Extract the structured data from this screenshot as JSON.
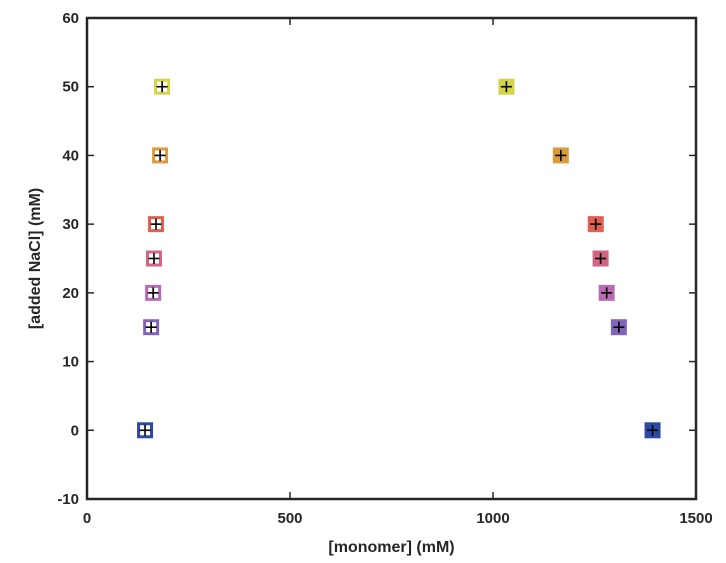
{
  "chart_data": {
    "type": "scatter",
    "title": "",
    "xlabel": "[monomer] (mM)",
    "ylabel": "[added NaCl] (mM)",
    "xlim": [
      0,
      1500
    ],
    "ylim": [
      -10,
      60
    ],
    "xticks": [
      0,
      500,
      1000,
      1500
    ],
    "yticks": [
      -10,
      0,
      10,
      20,
      30,
      40,
      50,
      60
    ],
    "grid": false,
    "legend": "none",
    "points": [
      {
        "x": 185,
        "y": 50,
        "color": "#d4d44a",
        "filled": false
      },
      {
        "x": 180,
        "y": 40,
        "color": "#dd9a3c",
        "filled": false
      },
      {
        "x": 170,
        "y": 30,
        "color": "#e06152",
        "filled": false
      },
      {
        "x": 165,
        "y": 25,
        "color": "#d26682",
        "filled": false
      },
      {
        "x": 163,
        "y": 20,
        "color": "#b66bb3",
        "filled": false
      },
      {
        "x": 158,
        "y": 15,
        "color": "#8365b5",
        "filled": false
      },
      {
        "x": 143,
        "y": 0,
        "color": "#2e48a6",
        "filled": false
      },
      {
        "x": 1033,
        "y": 50,
        "color": "#d4d44a",
        "filled": true
      },
      {
        "x": 1167,
        "y": 40,
        "color": "#dd9a3c",
        "filled": true
      },
      {
        "x": 1253,
        "y": 30,
        "color": "#e06152",
        "filled": true
      },
      {
        "x": 1265,
        "y": 25,
        "color": "#d26682",
        "filled": true
      },
      {
        "x": 1280,
        "y": 20,
        "color": "#b66bb3",
        "filled": true
      },
      {
        "x": 1310,
        "y": 15,
        "color": "#8365b5",
        "filled": true
      },
      {
        "x": 1393,
        "y": 0,
        "color": "#2e48a6",
        "filled": true
      }
    ]
  }
}
